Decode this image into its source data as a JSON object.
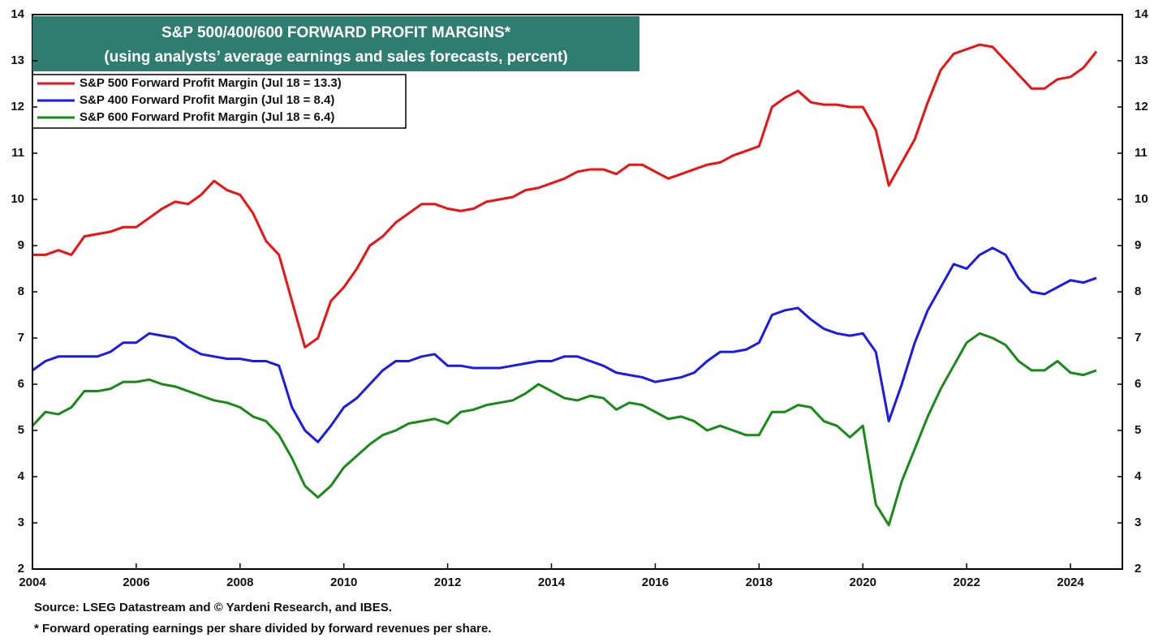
{
  "chart_data": {
    "type": "line",
    "title": "S&P 500/400/600 FORWARD PROFIT MARGINS*",
    "subtitle": "(using analysts’ average earnings and sales forecasts, percent)",
    "source": "Source: LSEG Datastream and © Yardeni Research, and IBES.",
    "note": "* Forward operating earnings per share divided by forward revenues per share.",
    "x": [
      2004,
      2004.25,
      2004.5,
      2004.75,
      2005,
      2005.25,
      2005.5,
      2005.75,
      2006,
      2006.25,
      2006.5,
      2006.75,
      2007,
      2007.25,
      2007.5,
      2007.75,
      2008,
      2008.25,
      2008.5,
      2008.75,
      2009,
      2009.25,
      2009.5,
      2009.75,
      2010,
      2010.25,
      2010.5,
      2010.75,
      2011,
      2011.25,
      2011.5,
      2011.75,
      2012,
      2012.25,
      2012.5,
      2012.75,
      2013,
      2013.25,
      2013.5,
      2013.75,
      2014,
      2014.25,
      2014.5,
      2014.75,
      2015,
      2015.25,
      2015.5,
      2015.75,
      2016,
      2016.25,
      2016.5,
      2016.75,
      2017,
      2017.25,
      2017.5,
      2017.75,
      2018,
      2018.25,
      2018.5,
      2018.75,
      2019,
      2019.25,
      2019.5,
      2019.75,
      2020,
      2020.25,
      2020.5,
      2020.75,
      2021,
      2021.25,
      2021.5,
      2021.75,
      2022,
      2022.25,
      2022.5,
      2022.75,
      2023,
      2023.25,
      2023.5,
      2023.75,
      2024,
      2024.25,
      2024.5
    ],
    "series": [
      {
        "name": "S&P 500 Forward Profit Margin (Jul 18 = 13.3)",
        "color": "#ee1111",
        "values": [
          8.8,
          8.8,
          8.9,
          8.8,
          9.2,
          9.25,
          9.3,
          9.4,
          9.4,
          9.6,
          9.8,
          9.95,
          9.9,
          10.1,
          10.4,
          10.2,
          10.1,
          9.7,
          9.1,
          8.8,
          7.8,
          6.8,
          7.0,
          7.8,
          8.1,
          8.5,
          9.0,
          9.2,
          9.5,
          9.7,
          9.9,
          9.9,
          9.8,
          9.75,
          9.8,
          9.95,
          10.0,
          10.05,
          10.2,
          10.25,
          10.35,
          10.45,
          10.6,
          10.65,
          10.65,
          10.55,
          10.75,
          10.75,
          10.6,
          10.45,
          10.55,
          10.65,
          10.75,
          10.8,
          10.95,
          11.05,
          11.15,
          12.0,
          12.2,
          12.35,
          12.1,
          12.05,
          12.05,
          12.0,
          12.0,
          11.5,
          10.3,
          10.8,
          11.3,
          12.1,
          12.8,
          13.15,
          13.25,
          13.35,
          13.3,
          13.0,
          12.7,
          12.4,
          12.4,
          12.6,
          12.65,
          12.85,
          13.2
        ]
      },
      {
        "name": "S&P 400 Forward Profit Margin (Jul 18 = 8.4)",
        "color": "#1a1aee",
        "values": [
          6.3,
          6.5,
          6.6,
          6.6,
          6.6,
          6.6,
          6.7,
          6.9,
          6.9,
          7.1,
          7.05,
          7.0,
          6.8,
          6.65,
          6.6,
          6.55,
          6.55,
          6.5,
          6.5,
          6.4,
          5.5,
          5.0,
          4.75,
          5.1,
          5.5,
          5.7,
          6.0,
          6.3,
          6.5,
          6.5,
          6.6,
          6.65,
          6.4,
          6.4,
          6.35,
          6.35,
          6.35,
          6.4,
          6.45,
          6.5,
          6.5,
          6.6,
          6.6,
          6.5,
          6.4,
          6.25,
          6.2,
          6.15,
          6.05,
          6.1,
          6.15,
          6.25,
          6.5,
          6.7,
          6.7,
          6.75,
          6.9,
          7.5,
          7.6,
          7.65,
          7.4,
          7.2,
          7.1,
          7.05,
          7.1,
          6.7,
          5.2,
          6.0,
          6.9,
          7.6,
          8.1,
          8.6,
          8.5,
          8.8,
          8.95,
          8.8,
          8.3,
          8.0,
          7.95,
          8.1,
          8.25,
          8.2,
          8.3
        ]
      },
      {
        "name": "S&P 600 Forward Profit Margin (Jul 18 = 6.4)",
        "color": "#178a17",
        "values": [
          5.1,
          5.4,
          5.35,
          5.5,
          5.85,
          5.85,
          5.9,
          6.05,
          6.05,
          6.1,
          6.0,
          5.95,
          5.85,
          5.75,
          5.65,
          5.6,
          5.5,
          5.3,
          5.2,
          4.9,
          4.4,
          3.8,
          3.55,
          3.8,
          4.2,
          4.45,
          4.7,
          4.9,
          5.0,
          5.15,
          5.2,
          5.25,
          5.15,
          5.4,
          5.45,
          5.55,
          5.6,
          5.65,
          5.8,
          6.0,
          5.85,
          5.7,
          5.65,
          5.75,
          5.7,
          5.45,
          5.6,
          5.55,
          5.4,
          5.25,
          5.3,
          5.2,
          5.0,
          5.1,
          5.0,
          4.9,
          4.9,
          5.4,
          5.4,
          5.55,
          5.5,
          5.2,
          5.1,
          4.85,
          5.1,
          3.4,
          2.95,
          3.9,
          4.6,
          5.3,
          5.9,
          6.4,
          6.9,
          7.1,
          7.0,
          6.85,
          6.5,
          6.3,
          6.3,
          6.5,
          6.25,
          6.2,
          6.3
        ]
      }
    ],
    "xlim": [
      2004,
      2025
    ],
    "xticks": [
      2004,
      2006,
      2008,
      2010,
      2012,
      2014,
      2016,
      2018,
      2020,
      2022,
      2024
    ],
    "ylim": [
      2,
      14
    ],
    "yticks": [
      2,
      3,
      4,
      5,
      6,
      7,
      8,
      9,
      10,
      11,
      12,
      13,
      14
    ]
  }
}
